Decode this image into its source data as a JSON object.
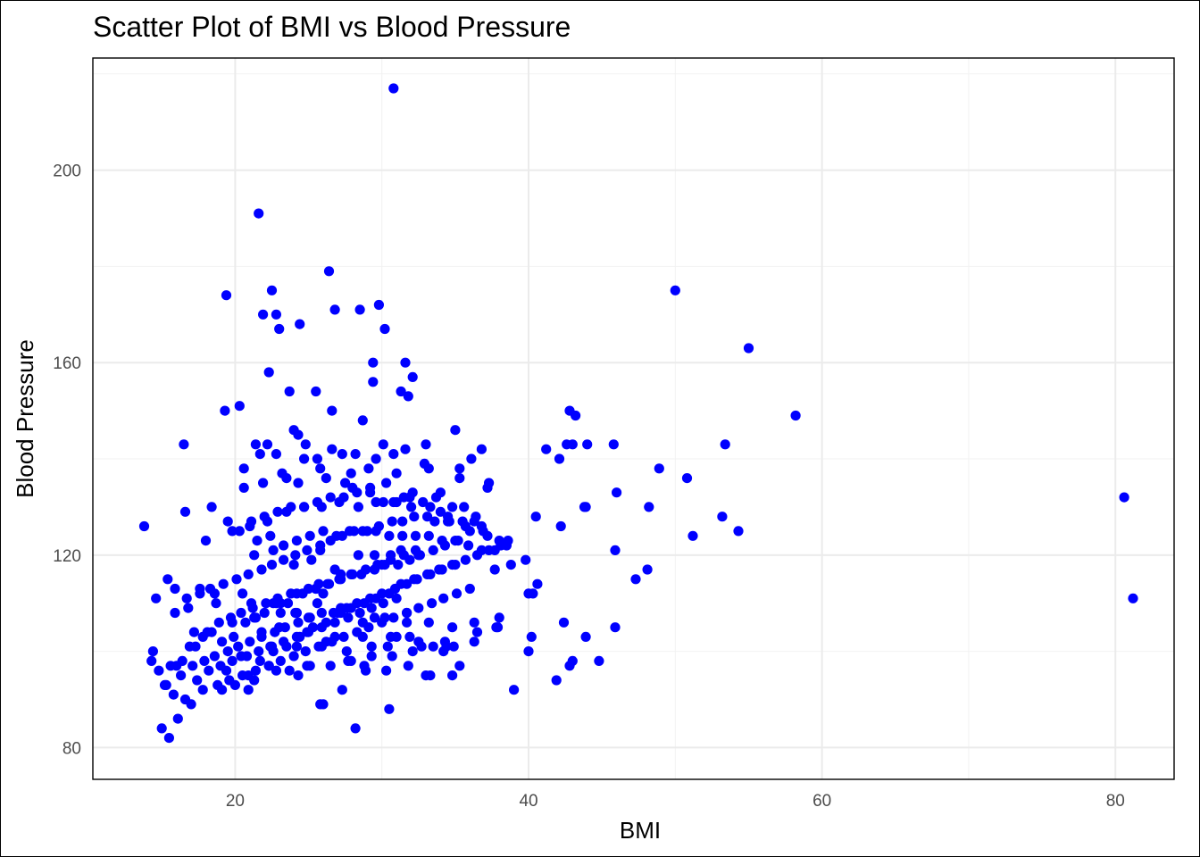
{
  "chart_data": {
    "type": "scatter",
    "title": "Scatter Plot of BMI vs Blood Pressure",
    "xlabel": "BMI",
    "ylabel": "Blood Pressure",
    "xlim": [
      10.3,
      84.0
    ],
    "ylim": [
      73.4,
      223.3
    ],
    "x_ticks": [
      20,
      40,
      60,
      80
    ],
    "y_ticks": [
      80,
      120,
      160,
      200
    ],
    "x_tick_labels": [
      "20",
      "40",
      "60",
      "80"
    ],
    "y_tick_labels": [
      "80",
      "120",
      "160",
      "200"
    ],
    "grid": true,
    "legend": "none",
    "point_color": "#0000ff",
    "x": [
      30.8,
      21.6,
      26.4,
      22.5,
      19.4,
      21.9,
      22.8,
      23.0,
      26.8,
      28.5,
      29.8,
      24.4,
      30.2,
      29.4,
      31.6,
      22.3,
      29.4,
      32.1,
      23.7,
      31.3,
      31.8,
      25.5,
      20.3,
      19.3,
      26.6,
      28.7,
      24.0,
      24.3,
      16.5,
      21.4,
      22.2,
      24.8,
      30.1,
      31.6,
      33.0,
      26.6,
      20.6,
      21.7,
      22.8,
      24.7,
      25.6,
      27.3,
      28.2,
      29.6,
      30.8,
      23.2,
      25.8,
      27.9,
      29.1,
      31.0,
      33.2,
      35.3,
      20.6,
      21.9,
      23.5,
      24.3,
      26.2,
      27.5,
      28.0,
      29.2,
      30.3,
      31.5,
      32.1,
      34.0,
      17.2,
      18.7,
      20.5,
      21.3,
      22.6,
      24.0,
      25.2,
      26.8,
      28.4,
      30.0,
      32.5,
      14.4,
      15.3,
      16.0,
      16.9,
      17.8,
      18.4,
      19.1,
      19.9,
      20.7,
      21.3,
      22.0,
      22.8,
      23.6,
      24.2,
      25.0,
      25.7,
      26.4,
      27.1,
      27.9,
      28.6,
      29.5,
      30.2,
      31.1,
      31.9,
      32.6,
      33.5,
      34.3,
      35.2,
      36.0,
      36.8,
      15.9,
      16.7,
      17.6,
      18.3,
      19.2,
      20.1,
      20.9,
      21.8,
      22.5,
      23.3,
      24.1,
      24.9,
      25.8,
      26.5,
      27.3,
      28.1,
      29.0,
      29.8,
      30.7,
      31.4,
      32.2,
      33.1,
      34.0,
      34.8,
      35.6,
      14.3,
      14.8,
      15.6,
      16.3,
      17.1,
      17.9,
      18.6,
      19.5,
      20.2,
      21.0,
      21.8,
      22.7,
      23.4,
      24.3,
      25.1,
      25.9,
      26.7,
      27.6,
      28.3,
      29.2,
      30.0,
      30.9,
      31.7,
      32.4,
      33.3,
      34.1,
      35.0,
      13.8,
      14.6,
      15.2,
      16.4,
      17.3,
      18.1,
      18.9,
      19.7,
      20.4,
      21.2,
      22.1,
      22.9,
      23.8,
      24.6,
      25.5,
      26.3,
      27.2,
      28.0,
      28.9,
      29.7,
      30.6,
      31.5,
      32.3,
      15.0,
      15.8,
      16.6,
      17.4,
      18.2,
      19.0,
      19.8,
      20.8,
      21.6,
      22.4,
      23.3,
      24.2,
      25.0,
      25.9,
      26.8,
      27.7,
      28.5,
      29.3,
      30.1,
      31.0,
      15.5,
      16.1,
      17.0,
      17.8,
      18.8,
      19.6,
      20.5,
      21.4,
      22.3,
      23.1,
      24.0,
      24.8,
      25.7,
      26.6,
      27.4,
      28.3,
      29.1,
      30.0,
      30.8,
      31.7,
      32.5,
      33.4,
      34.2,
      35.1,
      36.0,
      19.1,
      20.0,
      20.9,
      21.7,
      22.6,
      23.5,
      24.4,
      25.3,
      26.2,
      27.0,
      27.9,
      28.8,
      29.6,
      30.5,
      31.3,
      32.2,
      33.1,
      33.9,
      34.8,
      35.7,
      36.5,
      37.3,
      38.1,
      20.3,
      21.1,
      22.0,
      22.9,
      23.8,
      24.7,
      25.6,
      26.5,
      27.4,
      28.3,
      29.2,
      30.1,
      31.0,
      31.9,
      32.8,
      33.7,
      34.6,
      35.5,
      36.4,
      37.2,
      38.0,
      38.8,
      21.5,
      22.4,
      23.3,
      24.2,
      25.1,
      26.0,
      26.9,
      27.8,
      28.7,
      29.6,
      30.5,
      31.4,
      32.3,
      33.2,
      34.1,
      35.0,
      35.9,
      36.8,
      37.7,
      18.4,
      19.8,
      21.0,
      22.2,
      23.5,
      24.7,
      25.9,
      27.1,
      28.4,
      29.6,
      30.8,
      32.0,
      33.3,
      34.5,
      35.7,
      36.9,
      16.6,
      18.0,
      19.5,
      21.1,
      22.6,
      24.1,
      25.6,
      27.2,
      28.7,
      30.2,
      31.7,
      33.2,
      34.8,
      36.3,
      37.8,
      20.9,
      22.3,
      23.7,
      25.1,
      26.5,
      27.9,
      29.3,
      30.7,
      32.1,
      33.5,
      34.9,
      36.3,
      21.3,
      22.8,
      24.3,
      25.8,
      27.3,
      28.8,
      30.3,
      31.8,
      33.3,
      34.8,
      22.5,
      24.2,
      25.9,
      27.6,
      29.3,
      31.0,
      32.7,
      34.4,
      23.0,
      24.9,
      26.8,
      28.7,
      30.6,
      32.5,
      34.3,
      25.0,
      27.2,
      29.5,
      31.7,
      26.0,
      28.2,
      30.5,
      19.4,
      20.4,
      21.8,
      23.1,
      24.9,
      26.2,
      27.7,
      28.9,
      30.4,
      31.9,
      33.0,
      34.2,
      35.3,
      36.5,
      37.9,
      39.0,
      40.0,
      40.6,
      41.2,
      42.1,
      42.6,
      43.0,
      43.8,
      44.0,
      45.8,
      46.0,
      48.2,
      48.9,
      50.8,
      53.4,
      53.2,
      54.3,
      55.0,
      58.2,
      50.0,
      40.5,
      42.2,
      43.9,
      45.9,
      47.3,
      48.1,
      51.2,
      40.2,
      42.8,
      45.9,
      40.0,
      41.9,
      43.0,
      44.8,
      42.4,
      43.9,
      37.7,
      38.0,
      38.6,
      39.8,
      40.3,
      43.2,
      42.8,
      37.3,
      36.1,
      35.3,
      37.2,
      38.5,
      36.8,
      35.0,
      36.3,
      34.5,
      33.6,
      32.9,
      31.3,
      30.6,
      29.5,
      27.2,
      25.8,
      26.0,
      25.5,
      24.2,
      23.1,
      21.4,
      19.8,
      18.6,
      17.6,
      16.8,
      15.9,
      15.4,
      80.6,
      81.2
    ],
    "y": [
      217,
      191,
      179,
      175,
      174,
      170,
      170,
      167,
      171,
      171,
      172,
      168,
      167,
      160,
      160,
      158,
      156,
      157,
      154,
      154,
      153,
      154,
      151,
      150,
      150,
      148,
      146,
      145,
      143,
      143,
      143,
      143,
      143,
      142,
      143,
      142,
      138,
      141,
      141,
      140,
      140,
      141,
      141,
      140,
      141,
      137,
      138,
      137,
      138,
      137,
      138,
      138,
      134,
      135,
      136,
      135,
      136,
      135,
      134,
      134,
      135,
      132,
      133,
      133,
      104,
      110,
      112,
      120,
      121,
      118,
      119,
      117,
      120,
      118,
      120,
      100,
      93,
      97,
      101,
      103,
      104,
      102,
      103,
      106,
      107,
      108,
      110,
      110,
      112,
      113,
      114,
      114,
      115,
      116,
      116,
      117,
      118,
      118,
      119,
      120,
      121,
      122,
      123,
      125,
      126,
      113,
      111,
      112,
      113,
      114,
      115,
      116,
      117,
      118,
      119,
      120,
      121,
      122,
      123,
      124,
      125,
      125,
      126,
      127,
      127,
      128,
      128,
      129,
      130,
      130,
      98,
      96,
      97,
      95,
      97,
      98,
      99,
      100,
      101,
      102,
      103,
      104,
      105,
      106,
      107,
      108,
      108,
      109,
      110,
      111,
      112,
      113,
      114,
      115,
      116,
      117,
      118,
      126,
      111,
      93,
      98,
      101,
      104,
      106,
      107,
      108,
      109,
      110,
      111,
      112,
      112,
      113,
      114,
      115,
      116,
      117,
      118,
      119,
      120,
      121,
      84,
      91,
      90,
      94,
      96,
      97,
      98,
      99,
      100,
      101,
      102,
      103,
      104,
      105,
      106,
      107,
      108,
      109,
      110,
      111,
      82,
      86,
      89,
      92,
      93,
      94,
      95,
      96,
      97,
      98,
      99,
      100,
      101,
      102,
      103,
      104,
      105,
      106,
      107,
      108,
      109,
      110,
      111,
      112,
      113,
      92,
      93,
      95,
      98,
      100,
      101,
      103,
      105,
      106,
      108,
      109,
      110,
      111,
      112,
      114,
      115,
      116,
      117,
      118,
      119,
      120,
      121,
      122,
      125,
      127,
      128,
      129,
      130,
      130,
      131,
      132,
      132,
      133,
      133,
      131,
      131,
      132,
      131,
      132,
      127,
      127,
      128,
      124,
      123,
      118,
      123,
      124,
      122,
      123,
      124,
      125,
      124,
      125,
      125,
      125,
      124,
      124,
      124,
      124,
      123,
      123,
      122,
      121,
      121,
      130,
      125,
      126,
      127,
      129,
      130,
      130,
      131,
      130,
      131,
      131,
      130,
      130,
      127,
      126,
      125,
      129,
      123,
      127,
      110,
      110,
      108,
      110,
      109,
      106,
      107,
      106,
      106,
      105,
      106,
      105,
      92,
      97,
      96,
      97,
      97,
      98,
      99,
      99,
      100,
      101,
      101,
      102,
      94,
      96,
      95,
      89,
      92,
      97,
      96,
      97,
      95,
      95,
      101,
      101,
      101,
      100,
      101,
      103,
      101,
      101,
      105,
      104,
      103,
      103,
      103,
      102,
      102,
      107,
      108,
      107,
      108,
      89,
      84,
      88,
      96,
      99,
      104,
      108,
      97,
      102,
      98,
      96,
      101,
      103,
      95,
      100,
      97,
      104,
      105,
      92,
      112,
      114,
      142,
      140,
      143,
      143,
      130,
      143,
      143,
      133,
      130,
      138,
      136,
      143,
      128,
      125,
      163,
      149,
      175,
      128,
      126,
      130,
      121,
      115,
      117,
      124,
      103,
      97,
      105,
      100,
      94,
      98,
      98,
      106,
      103,
      117,
      107,
      123,
      119,
      112,
      149,
      150,
      135,
      140,
      136,
      134,
      122,
      142,
      146,
      127,
      128,
      127,
      139,
      121,
      120,
      120,
      116,
      121,
      112,
      113,
      108,
      110,
      107,
      106,
      112,
      113,
      109,
      108,
      115,
      132,
      111
    ]
  }
}
